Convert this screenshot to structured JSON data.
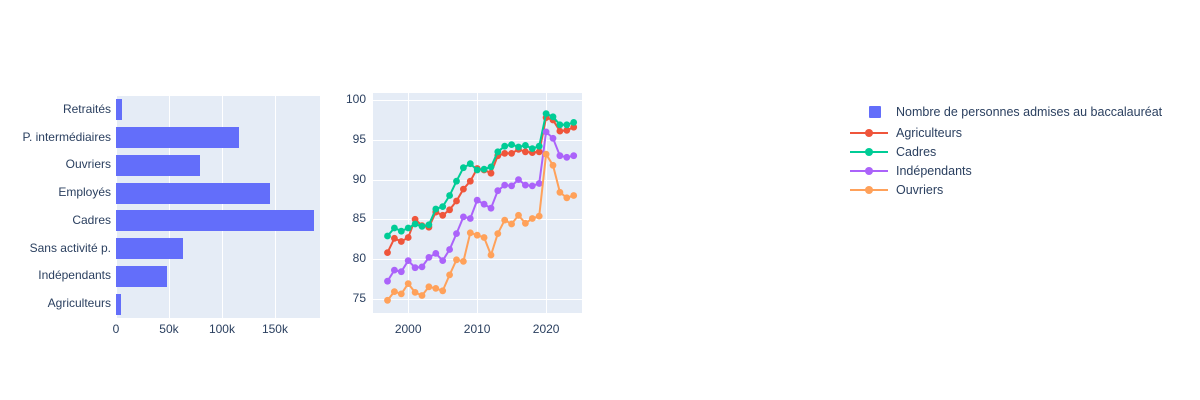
{
  "colors": {
    "background": "#ffffff",
    "plot_background": "#E5ECF6",
    "grid": "#ffffff",
    "text": "#2a3f5f",
    "bar_blue": "#636EFA",
    "agriculteurs_red": "#EF553B",
    "cadres_green": "#00CC96",
    "independants_purple": "#AB63FA",
    "ouvriers_orange": "#FFA15A"
  },
  "chart_data": [
    {
      "type": "bar",
      "orientation": "horizontal",
      "title": "",
      "legend_label": "Nombre de personnes admises au baccalauréat",
      "bar_color": "#636EFA",
      "categories_top_to_bottom": [
        "Retraités",
        "P. intermédiaires",
        "Ouvriers",
        "Employés",
        "Cadres",
        "Sans activité p.",
        "Indépendants",
        "Agriculteurs"
      ],
      "values": [
        5700,
        116000,
        79000,
        145000,
        187000,
        63000,
        48000,
        4300
      ],
      "x_tick_labels": [
        "0",
        "50k",
        "100k",
        "150k"
      ],
      "x_tick_values": [
        0,
        50000,
        100000,
        150000
      ],
      "xlim": [
        0,
        192500
      ],
      "grid": true
    },
    {
      "type": "line",
      "title": "",
      "x_ticks": [
        2000,
        2010,
        2020
      ],
      "y_ticks": [
        75,
        80,
        85,
        90,
        95,
        100
      ],
      "xlim": [
        1994.9,
        2025.2
      ],
      "ylim": [
        73.2,
        100.9
      ],
      "grid": true,
      "x": [
        1997,
        1998,
        1999,
        2000,
        2001,
        2002,
        2003,
        2004,
        2005,
        2006,
        2007,
        2008,
        2009,
        2010,
        2011,
        2012,
        2013,
        2014,
        2015,
        2016,
        2017,
        2018,
        2019,
        2020,
        2021,
        2022,
        2023,
        2024
      ],
      "series": [
        {
          "name": "Agriculteurs",
          "color": "#EF553B",
          "values": [
            80.8,
            82.6,
            82.2,
            82.7,
            85.0,
            84.2,
            84.0,
            85.9,
            85.5,
            86.2,
            87.3,
            88.8,
            89.8,
            91.4,
            91.2,
            90.8,
            93.0,
            93.3,
            93.3,
            93.8,
            93.5,
            93.4,
            93.5,
            97.8,
            97.5,
            96.1,
            96.2,
            96.6
          ]
        },
        {
          "name": "Cadres",
          "color": "#00CC96",
          "values": [
            82.9,
            83.9,
            83.5,
            83.9,
            84.4,
            84.1,
            84.3,
            86.3,
            86.6,
            88.0,
            89.8,
            91.5,
            92.0,
            91.2,
            91.3,
            91.6,
            93.5,
            94.2,
            94.4,
            94.1,
            94.3,
            93.9,
            94.2,
            98.3,
            97.9,
            96.9,
            96.9,
            97.2
          ]
        },
        {
          "name": "Indépendants",
          "color": "#AB63FA",
          "values": [
            77.2,
            78.6,
            78.4,
            79.8,
            78.9,
            79.0,
            80.2,
            80.7,
            79.8,
            81.2,
            83.2,
            85.3,
            85.1,
            87.4,
            86.9,
            86.4,
            88.6,
            89.3,
            89.2,
            90.0,
            89.3,
            89.2,
            89.5,
            96.0,
            95.2,
            93.0,
            92.8,
            93.0
          ]
        },
        {
          "name": "Ouvriers",
          "color": "#FFA15A",
          "values": [
            74.8,
            75.9,
            75.6,
            76.9,
            75.8,
            75.4,
            76.5,
            76.3,
            76.0,
            78.0,
            79.9,
            79.7,
            83.3,
            83.0,
            82.7,
            80.5,
            83.2,
            84.9,
            84.4,
            85.5,
            84.5,
            85.1,
            85.4,
            93.2,
            91.8,
            88.4,
            87.7,
            88.0
          ]
        }
      ]
    }
  ],
  "legend": {
    "items": [
      {
        "label": "Nombre de personnes admises au baccalauréat",
        "marker": "square",
        "color": "#636EFA"
      },
      {
        "label": "Agriculteurs",
        "marker": "line-dot",
        "color": "#EF553B"
      },
      {
        "label": "Cadres",
        "marker": "line-dot",
        "color": "#00CC96"
      },
      {
        "label": "Indépendants",
        "marker": "line-dot",
        "color": "#AB63FA"
      },
      {
        "label": "Ouvriers",
        "marker": "line-dot",
        "color": "#FFA15A"
      }
    ]
  }
}
